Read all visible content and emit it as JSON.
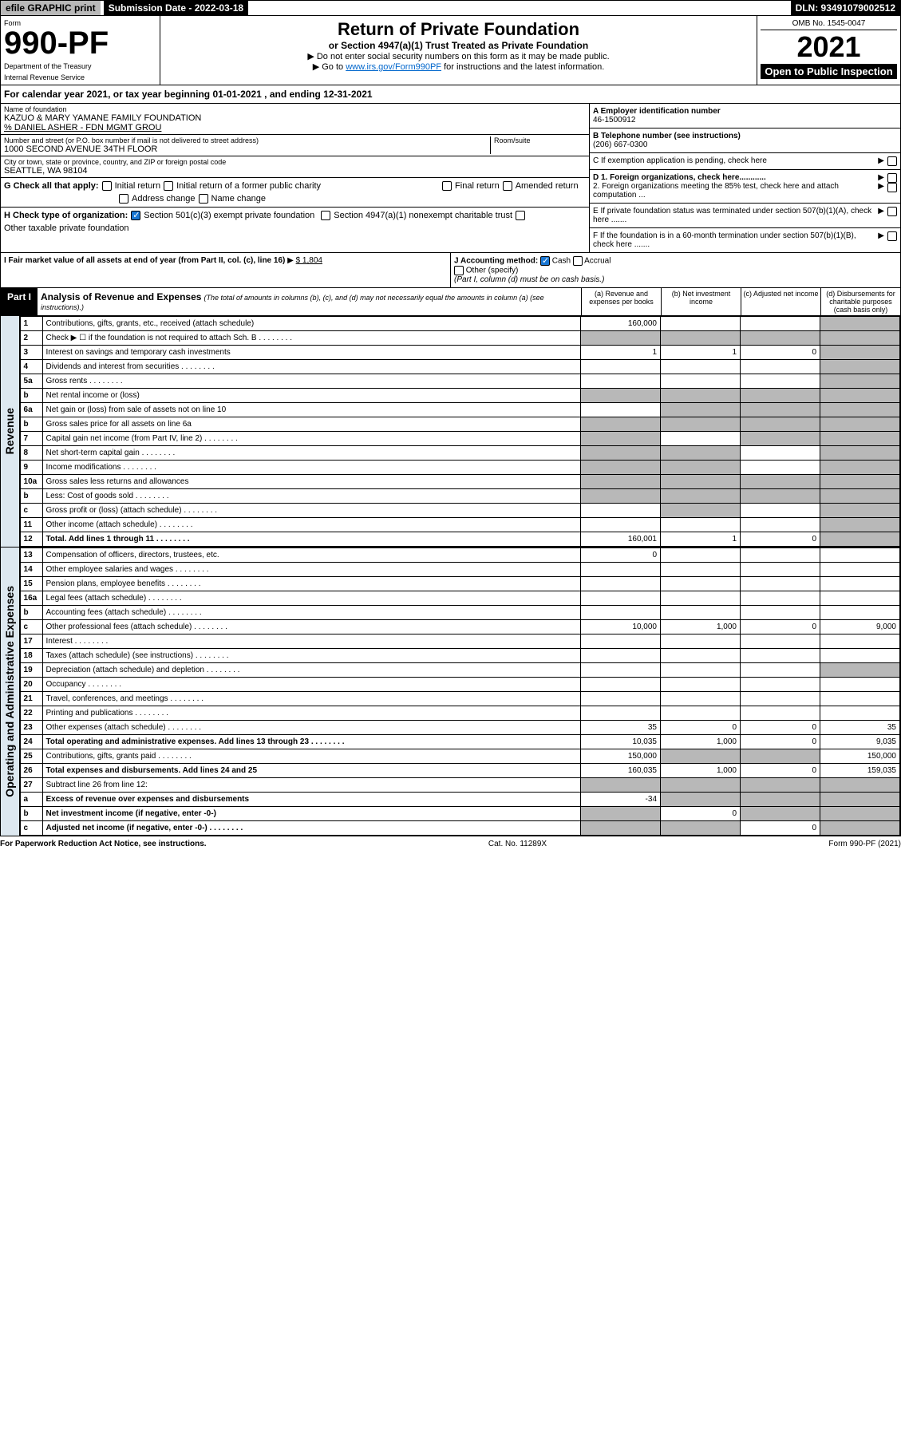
{
  "topbar": {
    "left": "efile GRAPHIC print",
    "submission_label": "Submission Date - 2022-03-18",
    "dln": "DLN: 93491079002512"
  },
  "header": {
    "form_label": "Form",
    "form_no": "990-PF",
    "dept": "Department of the Treasury",
    "irs": "Internal Revenue Service",
    "title": "Return of Private Foundation",
    "subtitle": "or Section 4947(a)(1) Trust Treated as Private Foundation",
    "instr1": "▶ Do not enter social security numbers on this form as it may be made public.",
    "instr2_prefix": "▶ Go to ",
    "instr2_link": "www.irs.gov/Form990PF",
    "instr2_suffix": " for instructions and the latest information.",
    "omb": "OMB No. 1545-0047",
    "year": "2021",
    "inspect": "Open to Public Inspection"
  },
  "cal_year": "For calendar year 2021, or tax year beginning 01-01-2021                 , and ending 12-31-2021",
  "name": {
    "label": "Name of foundation",
    "val": "KAZUO & MARY YAMANE FAMILY FOUNDATION",
    "co": "% DANIEL ASHER - FDN MGMT GROU"
  },
  "address": {
    "label": "Number and street (or P.O. box number if mail is not delivered to street address)",
    "val": "1000 SECOND AVENUE 34TH FLOOR",
    "room_label": "Room/suite"
  },
  "city": {
    "label": "City or town, state or province, country, and ZIP or foreign postal code",
    "val": "SEATTLE, WA  98104"
  },
  "ein": {
    "label": "A Employer identification number",
    "val": "46-1500912"
  },
  "phone": {
    "label": "B Telephone number (see instructions)",
    "val": "(206) 667-0300"
  },
  "boxC": "C If exemption application is pending, check here",
  "boxD1": "D 1. Foreign organizations, check here............",
  "boxD2": "2. Foreign organizations meeting the 85% test, check here and attach computation ...",
  "boxE": "E If private foundation status was terminated under section 507(b)(1)(A), check here .......",
  "boxF": "F If the foundation is in a 60-month termination under section 507(b)(1)(B), check here .......",
  "G": {
    "label": "G Check all that apply:",
    "opts": [
      "Initial return",
      "Initial return of a former public charity",
      "Final return",
      "Amended return",
      "Address change",
      "Name change"
    ]
  },
  "H": {
    "label": "H Check type of organization:",
    "opt1": "Section 501(c)(3) exempt private foundation",
    "opt2": "Section 4947(a)(1) nonexempt charitable trust",
    "opt3": "Other taxable private foundation"
  },
  "I": {
    "label": "I Fair market value of all assets at end of year (from Part II, col. (c), line 16)",
    "val": "$  1,804"
  },
  "J": {
    "label": "J Accounting method:",
    "cash": "Cash",
    "accrual": "Accrual",
    "other": "Other (specify)",
    "note": "(Part I, column (d) must be on cash basis.)"
  },
  "part1": {
    "label": "Part I",
    "title": "Analysis of Revenue and Expenses",
    "italic": "(The total of amounts in columns (b), (c), and (d) may not necessarily equal the amounts in column (a) (see instructions).)",
    "cols": {
      "a": "(a) Revenue and expenses per books",
      "b": "(b) Net investment income",
      "c": "(c) Adjusted net income",
      "d": "(d) Disbursements for charitable purposes (cash basis only)"
    }
  },
  "vert_labels": {
    "revenue": "Revenue",
    "expenses": "Operating and Administrative Expenses"
  },
  "rows": [
    {
      "n": "1",
      "desc": "Contributions, gifts, grants, etc., received (attach schedule)",
      "a": "160,000",
      "b": "",
      "c": "",
      "d": "",
      "dgrey": true
    },
    {
      "n": "2",
      "desc": "Check ▶ ☐ if the foundation is not required to attach Sch. B",
      "dots": true,
      "agrey": true,
      "bgrey": true,
      "cgrey": true,
      "dgrey": true
    },
    {
      "n": "3",
      "desc": "Interest on savings and temporary cash investments",
      "a": "1",
      "b": "1",
      "c": "0",
      "dgrey": true
    },
    {
      "n": "4",
      "desc": "Dividends and interest from securities",
      "dots": true,
      "dgrey": true
    },
    {
      "n": "5a",
      "desc": "Gross rents",
      "dots": true,
      "dgrey": true
    },
    {
      "n": "b",
      "desc": "Net rental income or (loss)",
      "agrey": true,
      "bgrey": true,
      "cgrey": true,
      "dgrey": true
    },
    {
      "n": "6a",
      "desc": "Net gain or (loss) from sale of assets not on line 10",
      "bgrey": true,
      "cgrey": true,
      "dgrey": true
    },
    {
      "n": "b",
      "desc": "Gross sales price for all assets on line 6a",
      "agrey": true,
      "bgrey": true,
      "cgrey": true,
      "dgrey": true
    },
    {
      "n": "7",
      "desc": "Capital gain net income (from Part IV, line 2)",
      "dots": true,
      "agrey": true,
      "cgrey": true,
      "dgrey": true
    },
    {
      "n": "8",
      "desc": "Net short-term capital gain",
      "dots": true,
      "agrey": true,
      "bgrey": true,
      "dgrey": true
    },
    {
      "n": "9",
      "desc": "Income modifications",
      "dots": true,
      "agrey": true,
      "bgrey": true,
      "dgrey": true
    },
    {
      "n": "10a",
      "desc": "Gross sales less returns and allowances",
      "agrey": true,
      "bgrey": true,
      "cgrey": true,
      "dgrey": true
    },
    {
      "n": "b",
      "desc": "Less: Cost of goods sold",
      "dots": true,
      "agrey": true,
      "bgrey": true,
      "cgrey": true,
      "dgrey": true
    },
    {
      "n": "c",
      "desc": "Gross profit or (loss) (attach schedule)",
      "dots": true,
      "bgrey": true,
      "dgrey": true
    },
    {
      "n": "11",
      "desc": "Other income (attach schedule)",
      "dots": true,
      "dgrey": true
    },
    {
      "n": "12",
      "desc": "Total. Add lines 1 through 11",
      "dots": true,
      "bold": true,
      "a": "160,001",
      "b": "1",
      "c": "0",
      "dgrey": true
    }
  ],
  "exp_rows": [
    {
      "n": "13",
      "desc": "Compensation of officers, directors, trustees, etc.",
      "a": "0"
    },
    {
      "n": "14",
      "desc": "Other employee salaries and wages",
      "dots": true
    },
    {
      "n": "15",
      "desc": "Pension plans, employee benefits",
      "dots": true
    },
    {
      "n": "16a",
      "desc": "Legal fees (attach schedule)",
      "dots": true
    },
    {
      "n": "b",
      "desc": "Accounting fees (attach schedule)",
      "dots": true
    },
    {
      "n": "c",
      "desc": "Other professional fees (attach schedule)",
      "dots": true,
      "a": "10,000",
      "b": "1,000",
      "c": "0",
      "d": "9,000"
    },
    {
      "n": "17",
      "desc": "Interest",
      "dots": true
    },
    {
      "n": "18",
      "desc": "Taxes (attach schedule) (see instructions)",
      "dots": true
    },
    {
      "n": "19",
      "desc": "Depreciation (attach schedule) and depletion",
      "dots": true,
      "dgrey": true
    },
    {
      "n": "20",
      "desc": "Occupancy",
      "dots": true
    },
    {
      "n": "21",
      "desc": "Travel, conferences, and meetings",
      "dots": true
    },
    {
      "n": "22",
      "desc": "Printing and publications",
      "dots": true
    },
    {
      "n": "23",
      "desc": "Other expenses (attach schedule)",
      "dots": true,
      "a": "35",
      "b": "0",
      "c": "0",
      "d": "35"
    },
    {
      "n": "24",
      "desc": "Total operating and administrative expenses. Add lines 13 through 23",
      "dots": true,
      "bold": true,
      "a": "10,035",
      "b": "1,000",
      "c": "0",
      "d": "9,035"
    },
    {
      "n": "25",
      "desc": "Contributions, gifts, grants paid",
      "dots": true,
      "a": "150,000",
      "bgrey": true,
      "cgrey": true,
      "d": "150,000"
    },
    {
      "n": "26",
      "desc": "Total expenses and disbursements. Add lines 24 and 25",
      "bold": true,
      "a": "160,035",
      "b": "1,000",
      "c": "0",
      "d": "159,035"
    },
    {
      "n": "27",
      "desc": "Subtract line 26 from line 12:",
      "agrey": true,
      "bgrey": true,
      "cgrey": true,
      "dgrey": true
    },
    {
      "n": "a",
      "desc": "Excess of revenue over expenses and disbursements",
      "bold": true,
      "a": "-34",
      "bgrey": true,
      "cgrey": true,
      "dgrey": true
    },
    {
      "n": "b",
      "desc": "Net investment income (if negative, enter -0-)",
      "bold": true,
      "agrey": true,
      "b": "0",
      "cgrey": true,
      "dgrey": true
    },
    {
      "n": "c",
      "desc": "Adjusted net income (if negative, enter -0-)",
      "bold": true,
      "dots": true,
      "agrey": true,
      "bgrey": true,
      "c": "0",
      "dgrey": true
    }
  ],
  "footer": {
    "left": "For Paperwork Reduction Act Notice, see instructions.",
    "mid": "Cat. No. 11289X",
    "right": "Form 990-PF (2021)"
  },
  "colors": {
    "grey": "#b8b8b8",
    "lightblue_bg": "#dde8f0",
    "link": "#0066cc",
    "check": "#1976d2"
  }
}
